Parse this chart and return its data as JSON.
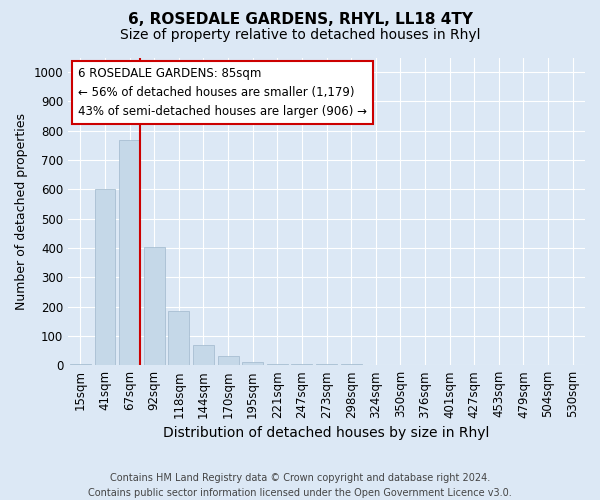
{
  "title": "6, ROSEDALE GARDENS, RHYL, LL18 4TY",
  "subtitle": "Size of property relative to detached houses in Rhyl",
  "xlabel": "Distribution of detached houses by size in Rhyl",
  "ylabel": "Number of detached properties",
  "bins": [
    "15sqm",
    "41sqm",
    "67sqm",
    "92sqm",
    "118sqm",
    "144sqm",
    "170sqm",
    "195sqm",
    "221sqm",
    "247sqm",
    "273sqm",
    "298sqm",
    "324sqm",
    "350sqm",
    "376sqm",
    "401sqm",
    "427sqm",
    "453sqm",
    "479sqm",
    "504sqm",
    "530sqm"
  ],
  "values": [
    5,
    600,
    770,
    405,
    185,
    70,
    30,
    10,
    5,
    3,
    3,
    5,
    0,
    0,
    0,
    0,
    0,
    0,
    0,
    0,
    0
  ],
  "bar_color": "#c5d8e8",
  "bar_edge_color": "#a0b8cc",
  "vline_x_index": 2,
  "vline_color": "#cc0000",
  "annotation_line1": "6 ROSEDALE GARDENS: 85sqm",
  "annotation_line2": "← 56% of detached houses are smaller (1,179)",
  "annotation_line3": "43% of semi-detached houses are larger (906) →",
  "annotation_box_color": "#ffffff",
  "annotation_box_edge": "#cc0000",
  "ylim": [
    0,
    1050
  ],
  "yticks": [
    0,
    100,
    200,
    300,
    400,
    500,
    600,
    700,
    800,
    900,
    1000
  ],
  "title_fontsize": 11,
  "subtitle_fontsize": 10,
  "xlabel_fontsize": 10,
  "ylabel_fontsize": 9,
  "tick_fontsize": 8.5,
  "footnote": "Contains HM Land Registry data © Crown copyright and database right 2024.\nContains public sector information licensed under the Open Government Licence v3.0.",
  "background_color": "#dce8f5",
  "plot_bg_color": "#dce8f5"
}
